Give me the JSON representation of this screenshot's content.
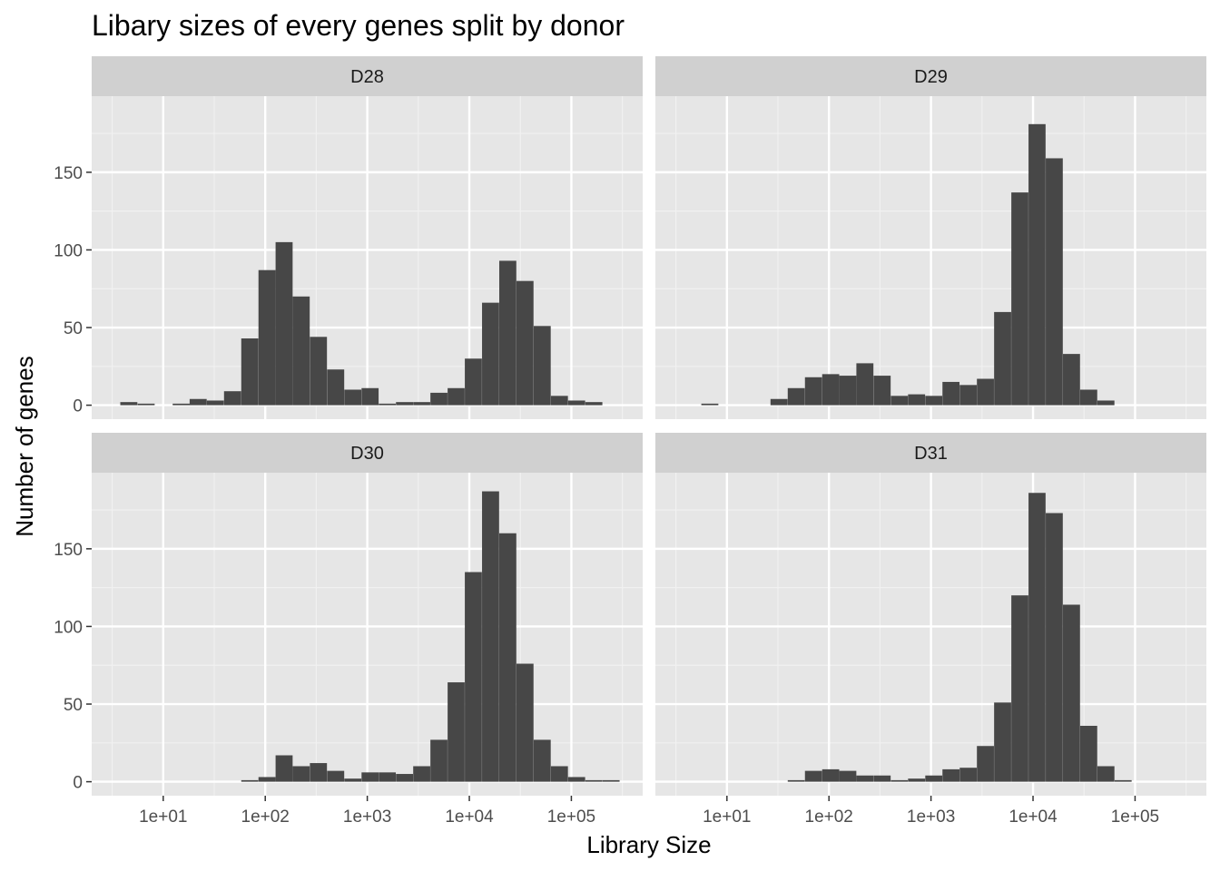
{
  "chart_data": {
    "type": "bar",
    "subtype": "faceted-histogram",
    "title": "Libary sizes of every genes split by donor",
    "xlabel": "Library Size",
    "ylabel": "Number of genes",
    "x_scale": "log10",
    "x_ticks": [
      10,
      100,
      1000,
      10000,
      100000
    ],
    "x_tick_labels": [
      "1e+01",
      "1e+02",
      "1e+03",
      "1e+04",
      "1e+05"
    ],
    "xlim": [
      1.99,
      500000
    ],
    "y_ticks": [
      0,
      50,
      100,
      150
    ],
    "y_tick_labels": [
      "0",
      "50",
      "100",
      "150"
    ],
    "ylim": [
      -9,
      199
    ],
    "grid": true,
    "legend": "none",
    "bin_width_log10": 0.167,
    "colors": {
      "bar": "#474747",
      "panel_bg": "#e6e6e6",
      "strip_bg": "#d0d0d0",
      "grid_major": "#ffffff",
      "grid_minor": "#f1f1f1",
      "tick_color": "#333333"
    },
    "facets": [
      {
        "name": "D28",
        "bins": [
          {
            "x": 4.6,
            "count": 2
          },
          {
            "x": 6.8,
            "count": 1
          },
          {
            "x": 15.0,
            "count": 1
          },
          {
            "x": 22.0,
            "count": 4
          },
          {
            "x": 32.4,
            "count": 3
          },
          {
            "x": 47.8,
            "count": 9
          },
          {
            "x": 70.5,
            "count": 43
          },
          {
            "x": 104,
            "count": 87
          },
          {
            "x": 153,
            "count": 105
          },
          {
            "x": 225,
            "count": 70
          },
          {
            "x": 332,
            "count": 44
          },
          {
            "x": 490,
            "count": 23
          },
          {
            "x": 722,
            "count": 10
          },
          {
            "x": 1065,
            "count": 11
          },
          {
            "x": 1570,
            "count": 1
          },
          {
            "x": 2316,
            "count": 2
          },
          {
            "x": 3415,
            "count": 2
          },
          {
            "x": 5036,
            "count": 8
          },
          {
            "x": 7427,
            "count": 11
          },
          {
            "x": 10950,
            "count": 30
          },
          {
            "x": 16150,
            "count": 66
          },
          {
            "x": 23820,
            "count": 93
          },
          {
            "x": 35120,
            "count": 80
          },
          {
            "x": 51790,
            "count": 51
          },
          {
            "x": 76370,
            "count": 6
          },
          {
            "x": 112600,
            "count": 3
          },
          {
            "x": 166100,
            "count": 2
          }
        ]
      },
      {
        "name": "D29",
        "bins": [
          {
            "x": 6.8,
            "count": 1
          },
          {
            "x": 32.4,
            "count": 4
          },
          {
            "x": 47.8,
            "count": 11
          },
          {
            "x": 70.5,
            "count": 18
          },
          {
            "x": 104,
            "count": 20
          },
          {
            "x": 153,
            "count": 19
          },
          {
            "x": 225,
            "count": 27
          },
          {
            "x": 332,
            "count": 19
          },
          {
            "x": 490,
            "count": 6
          },
          {
            "x": 722,
            "count": 7
          },
          {
            "x": 1065,
            "count": 6
          },
          {
            "x": 1570,
            "count": 15
          },
          {
            "x": 2316,
            "count": 13
          },
          {
            "x": 3415,
            "count": 17
          },
          {
            "x": 5036,
            "count": 60
          },
          {
            "x": 7427,
            "count": 137
          },
          {
            "x": 10950,
            "count": 181
          },
          {
            "x": 16150,
            "count": 159
          },
          {
            "x": 23820,
            "count": 33
          },
          {
            "x": 35120,
            "count": 10
          },
          {
            "x": 51790,
            "count": 3
          }
        ]
      },
      {
        "name": "D30",
        "bins": [
          {
            "x": 70.5,
            "count": 1
          },
          {
            "x": 104,
            "count": 3
          },
          {
            "x": 153,
            "count": 17
          },
          {
            "x": 225,
            "count": 10
          },
          {
            "x": 332,
            "count": 12
          },
          {
            "x": 490,
            "count": 7
          },
          {
            "x": 722,
            "count": 2
          },
          {
            "x": 1065,
            "count": 6
          },
          {
            "x": 1570,
            "count": 6
          },
          {
            "x": 2316,
            "count": 5
          },
          {
            "x": 3415,
            "count": 10
          },
          {
            "x": 5036,
            "count": 27
          },
          {
            "x": 7427,
            "count": 64
          },
          {
            "x": 10950,
            "count": 135
          },
          {
            "x": 16150,
            "count": 187
          },
          {
            "x": 23820,
            "count": 160
          },
          {
            "x": 35120,
            "count": 76
          },
          {
            "x": 51790,
            "count": 27
          },
          {
            "x": 76370,
            "count": 10
          },
          {
            "x": 112600,
            "count": 3
          },
          {
            "x": 166100,
            "count": 1
          },
          {
            "x": 245000,
            "count": 1
          }
        ]
      },
      {
        "name": "D31",
        "bins": [
          {
            "x": 47.8,
            "count": 1
          },
          {
            "x": 70.5,
            "count": 7
          },
          {
            "x": 104,
            "count": 8
          },
          {
            "x": 153,
            "count": 7
          },
          {
            "x": 225,
            "count": 4
          },
          {
            "x": 332,
            "count": 4
          },
          {
            "x": 490,
            "count": 1
          },
          {
            "x": 722,
            "count": 2
          },
          {
            "x": 1065,
            "count": 4
          },
          {
            "x": 1570,
            "count": 8
          },
          {
            "x": 2316,
            "count": 9
          },
          {
            "x": 3415,
            "count": 23
          },
          {
            "x": 5036,
            "count": 51
          },
          {
            "x": 7427,
            "count": 120
          },
          {
            "x": 10950,
            "count": 186
          },
          {
            "x": 16150,
            "count": 173
          },
          {
            "x": 23820,
            "count": 114
          },
          {
            "x": 35120,
            "count": 36
          },
          {
            "x": 51790,
            "count": 10
          },
          {
            "x": 76370,
            "count": 1
          }
        ]
      }
    ]
  }
}
